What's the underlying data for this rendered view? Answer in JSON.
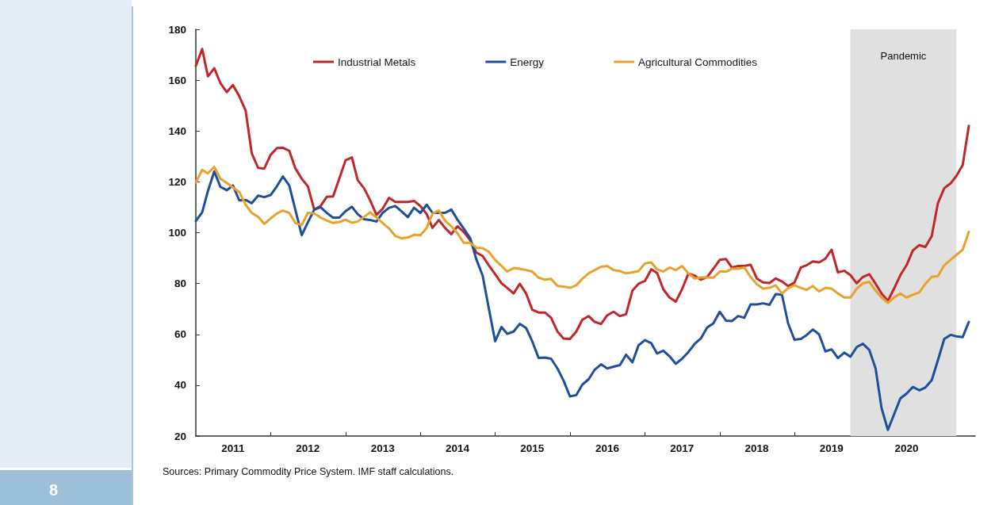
{
  "chart_data": {
    "type": "line",
    "x": [
      "2011-01",
      "2011-02",
      "2011-03",
      "2011-04",
      "2011-05",
      "2011-06",
      "2011-07",
      "2011-08",
      "2011-09",
      "2011-10",
      "2011-11",
      "2011-12",
      "2012-01",
      "2012-02",
      "2012-03",
      "2012-04",
      "2012-05",
      "2012-06",
      "2012-07",
      "2012-08",
      "2012-09",
      "2012-10",
      "2012-11",
      "2012-12",
      "2013-01",
      "2013-02",
      "2013-03",
      "2013-04",
      "2013-05",
      "2013-06",
      "2013-07",
      "2013-08",
      "2013-09",
      "2013-10",
      "2013-11",
      "2013-12",
      "2014-01",
      "2014-02",
      "2014-03",
      "2014-04",
      "2014-05",
      "2014-06",
      "2014-07",
      "2014-08",
      "2014-09",
      "2014-10",
      "2014-11",
      "2014-12",
      "2015-01",
      "2015-02",
      "2015-03",
      "2015-04",
      "2015-05",
      "2015-06",
      "2015-07",
      "2015-08",
      "2015-09",
      "2015-10",
      "2015-11",
      "2015-12",
      "2016-01",
      "2016-02",
      "2016-03",
      "2016-04",
      "2016-05",
      "2016-06",
      "2016-07",
      "2016-08",
      "2016-09",
      "2016-10",
      "2016-11",
      "2016-12",
      "2017-01",
      "2017-02",
      "2017-03",
      "2017-04",
      "2017-05",
      "2017-06",
      "2017-07",
      "2017-08",
      "2017-09",
      "2017-10",
      "2017-11",
      "2017-12",
      "2018-01",
      "2018-02",
      "2018-03",
      "2018-04",
      "2018-05",
      "2018-06",
      "2018-07",
      "2018-08",
      "2018-09",
      "2018-10",
      "2018-11",
      "2018-12",
      "2019-01",
      "2019-02",
      "2019-03",
      "2019-04",
      "2019-05",
      "2019-06",
      "2019-07",
      "2019-08",
      "2019-09",
      "2019-10",
      "2019-11",
      "2019-12",
      "2020-01",
      "2020-02",
      "2020-03",
      "2020-04",
      "2020-05",
      "2020-06",
      "2020-07",
      "2020-08",
      "2020-09",
      "2020-10",
      "2020-11",
      "2020-12",
      "2021-01",
      "2021-02",
      "2021-03",
      "2021-04",
      "2021-05"
    ],
    "series": [
      {
        "name": "Industrial Metals",
        "color": "#c0272d",
        "values": [
          165.6,
          172.3,
          161.5,
          164.7,
          158.8,
          155.3,
          158.1,
          153.7,
          148.1,
          131.2,
          125.5,
          125.2,
          130.6,
          133.3,
          133.4,
          132.2,
          125.3,
          121.2,
          118.2,
          109.1,
          110.5,
          114.1,
          114.3,
          121.2,
          128.5,
          129.6,
          120.7,
          117.5,
          112.7,
          107.0,
          109.4,
          113.7,
          112.1,
          112.1,
          112.1,
          112.5,
          110.5,
          107.3,
          101.9,
          105.0,
          101.9,
          99.4,
          102.5,
          100.3,
          97.1,
          92.2,
          90.8,
          87.2,
          83.7,
          80.1,
          78.3,
          76.1,
          79.9,
          76.1,
          69.7,
          68.6,
          68.6,
          66.5,
          61.1,
          58.4,
          58.2,
          61.1,
          65.7,
          67.2,
          64.9,
          64.1,
          67.5,
          68.9,
          67.2,
          67.9,
          77.2,
          79.9,
          81.0,
          85.6,
          84.2,
          77.7,
          74.5,
          72.9,
          77.7,
          83.9,
          83.1,
          81.5,
          82.6,
          85.8,
          89.3,
          89.6,
          86.3,
          86.9,
          86.9,
          87.4,
          82.0,
          80.4,
          80.2,
          82.0,
          80.8,
          79.0,
          80.4,
          86.3,
          87.2,
          88.7,
          88.3,
          89.8,
          93.3,
          84.4,
          85.0,
          83.3,
          80.1,
          82.6,
          83.7,
          79.9,
          76.1,
          73.2,
          78.0,
          83.3,
          87.2,
          93.0,
          95.1,
          94.4,
          98.7,
          111.6,
          117.5,
          119.4,
          122.3,
          126.6,
          142.0
        ]
      },
      {
        "name": "Energy",
        "color": "#1f4e9a",
        "values": [
          104.6,
          108.0,
          116.4,
          124.1,
          118.0,
          116.7,
          118.6,
          112.7,
          112.9,
          111.6,
          114.6,
          114.0,
          114.8,
          118.3,
          122.1,
          118.6,
          108.9,
          99.0,
          104.1,
          109.1,
          110.0,
          107.8,
          105.9,
          105.9,
          108.5,
          110.2,
          107.3,
          105.3,
          105.0,
          104.4,
          107.8,
          109.8,
          110.5,
          108.4,
          106.1,
          109.8,
          107.8,
          111.0,
          107.8,
          107.8,
          107.8,
          109.1,
          105.1,
          101.6,
          97.9,
          89.6,
          83.1,
          70.2,
          57.3,
          62.9,
          60.2,
          61.1,
          64.1,
          62.5,
          57.3,
          50.7,
          50.9,
          50.4,
          46.6,
          41.8,
          35.6,
          36.1,
          40.2,
          42.3,
          46.1,
          48.2,
          46.6,
          47.3,
          47.9,
          52.0,
          49.0,
          55.7,
          57.7,
          56.5,
          52.5,
          53.6,
          51.4,
          48.4,
          50.4,
          53.0,
          56.3,
          58.4,
          62.7,
          64.3,
          68.9,
          65.4,
          65.2,
          67.2,
          66.5,
          71.8,
          71.8,
          72.2,
          71.6,
          75.8,
          75.6,
          64.3,
          57.9,
          58.2,
          59.7,
          61.9,
          60.0,
          53.3,
          54.1,
          50.7,
          52.8,
          51.2,
          55.0,
          56.3,
          53.9,
          46.6,
          31.0,
          22.4,
          28.5,
          34.8,
          36.7,
          39.3,
          38.0,
          39.1,
          42.0,
          49.8,
          58.2,
          59.8,
          59.2,
          58.9,
          64.9
        ]
      },
      {
        "name": "Agricultural Commodities",
        "color": "#e8a22b",
        "values": [
          119.8,
          124.7,
          123.3,
          125.9,
          121.2,
          119.6,
          117.8,
          116.0,
          111.0,
          107.8,
          106.2,
          103.5,
          105.6,
          107.6,
          108.7,
          107.8,
          103.8,
          103.0,
          107.8,
          107.6,
          105.9,
          104.8,
          103.8,
          104.2,
          105.1,
          103.9,
          104.4,
          106.2,
          108.0,
          106.0,
          103.8,
          101.7,
          98.7,
          97.8,
          98.1,
          99.2,
          99.0,
          101.9,
          107.5,
          108.7,
          104.8,
          102.5,
          99.8,
          96.0,
          96.0,
          94.1,
          93.9,
          92.5,
          89.3,
          86.9,
          84.7,
          86.1,
          85.8,
          85.3,
          84.7,
          82.3,
          81.5,
          81.8,
          79.0,
          78.8,
          78.3,
          79.3,
          81.8,
          84.0,
          85.3,
          86.6,
          86.9,
          85.3,
          84.9,
          84.0,
          84.4,
          84.9,
          87.9,
          88.3,
          85.6,
          84.7,
          86.3,
          85.3,
          86.9,
          84.0,
          82.0,
          82.4,
          82.4,
          82.3,
          84.7,
          84.7,
          85.8,
          85.8,
          86.3,
          82.6,
          79.7,
          78.0,
          78.3,
          79.3,
          76.1,
          78.1,
          79.3,
          78.3,
          77.5,
          79.0,
          76.9,
          78.3,
          78.0,
          76.1,
          74.5,
          74.5,
          78.0,
          80.1,
          80.6,
          77.2,
          74.5,
          72.4,
          74.5,
          76.1,
          74.5,
          75.6,
          76.5,
          79.9,
          82.6,
          82.9,
          87.2,
          89.3,
          91.2,
          93.3,
          100.3
        ]
      }
    ],
    "xlim": [
      "2011-01",
      "2021-06"
    ],
    "xticks": [
      {
        "value": "2011-07",
        "label": "2011"
      },
      {
        "value": "2012-07",
        "label": "2012"
      },
      {
        "value": "2013-07",
        "label": "2013"
      },
      {
        "value": "2014-07",
        "label": "2014"
      },
      {
        "value": "2015-07",
        "label": "2015"
      },
      {
        "value": "2016-07",
        "label": "2016"
      },
      {
        "value": "2017-07",
        "label": "2017"
      },
      {
        "value": "2018-07",
        "label": "2018"
      },
      {
        "value": "2019-07",
        "label": "2019"
      },
      {
        "value": "2020-07",
        "label": "2020"
      },
      {
        "value": "2012-01",
        "label": null
      },
      {
        "value": "2013-01",
        "label": null
      },
      {
        "value": "2014-01",
        "label": null
      },
      {
        "value": "2015-01",
        "label": null
      },
      {
        "value": "2016-01",
        "label": null
      },
      {
        "value": "2017-01",
        "label": null
      },
      {
        "value": "2018-01",
        "label": null
      },
      {
        "value": "2019-01",
        "label": null
      },
      {
        "value": "2020-01",
        "label": null
      },
      {
        "value": "2021-01",
        "label": null
      }
    ],
    "ylim": [
      20,
      180
    ],
    "yticks": [
      20,
      40,
      60,
      80,
      100,
      120,
      140,
      160,
      180
    ],
    "bands": [
      {
        "axis": "x",
        "from": "2019-10",
        "to": "2021-03",
        "label": "Pandemic",
        "color": "#e0e0e0"
      }
    ],
    "annotations": [
      "Sources: Primary Commodity Price System. IMF staff calculations.",
      "8"
    ],
    "legend": "top",
    "grid": false,
    "marker": "none",
    "line_style": "solid"
  }
}
